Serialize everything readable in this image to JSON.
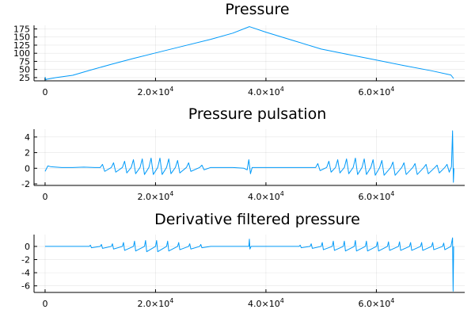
{
  "chart_data": [
    {
      "type": "line",
      "title": "Pressure",
      "xlabel": "",
      "ylabel": "",
      "xlim": [
        -2000,
        76000
      ],
      "ylim": [
        15,
        186
      ],
      "x_ticks": [
        {
          "value": 0,
          "mantissa": "0",
          "exp": ""
        },
        {
          "value": 20000,
          "mantissa": "2.0×10",
          "exp": "4"
        },
        {
          "value": 40000,
          "mantissa": "4.0×10",
          "exp": "4"
        },
        {
          "value": 60000,
          "mantissa": "6.0×10",
          "exp": "4"
        }
      ],
      "y_ticks": [
        25,
        50,
        75,
        100,
        125,
        150,
        175
      ],
      "grid": true,
      "legend": "none",
      "series": [
        {
          "x": [
            0,
            150,
            300,
            2000,
            5000,
            8000,
            12000,
            16000,
            20000,
            25000,
            30000,
            34000,
            37000,
            37200,
            40000,
            45000,
            50000,
            55000,
            60000,
            65000,
            70000,
            73500,
            74000
          ],
          "y": [
            27,
            18,
            20,
            25,
            32,
            47,
            66,
            84,
            101,
            122,
            143,
            162,
            182,
            181,
            165,
            139,
            113,
            96,
            79,
            62,
            46,
            33,
            22
          ]
        }
      ]
    },
    {
      "type": "line",
      "title": "Pressure pulsation",
      "xlabel": "",
      "ylabel": "",
      "xlim": [
        -2000,
        76000
      ],
      "ylim": [
        -2.2,
        5.0
      ],
      "x_ticks": [
        {
          "value": 0,
          "mantissa": "0",
          "exp": ""
        },
        {
          "value": 20000,
          "mantissa": "2.0×10",
          "exp": "4"
        },
        {
          "value": 40000,
          "mantissa": "4.0×10",
          "exp": "4"
        },
        {
          "value": 60000,
          "mantissa": "6.0×10",
          "exp": "4"
        }
      ],
      "y_ticks": [
        -2,
        0,
        2,
        4
      ],
      "grid": true,
      "legend": "none",
      "series": [
        {
          "x": [
            0,
            500,
            1000,
            3000,
            5000,
            7000,
            9000,
            10000,
            10400,
            10800,
            12000,
            12400,
            12800,
            14000,
            14400,
            14800,
            15600,
            16000,
            16400,
            17200,
            17600,
            18000,
            18800,
            19200,
            19600,
            20400,
            20800,
            21200,
            22000,
            22400,
            22800,
            23600,
            24000,
            24400,
            25600,
            26000,
            26400,
            28000,
            28400,
            28800,
            30000,
            32000,
            34000,
            36000,
            36600,
            36900,
            37200,
            37500,
            38000,
            40000,
            42000,
            44000,
            46000,
            48000,
            49000,
            49400,
            49800,
            51000,
            51400,
            51800,
            52600,
            53000,
            53400,
            54200,
            54600,
            55000,
            55800,
            56200,
            56600,
            57400,
            57800,
            58200,
            59000,
            59400,
            59800,
            60600,
            61000,
            61400,
            62600,
            63000,
            63400,
            64600,
            65000,
            65400,
            66600,
            67000,
            67400,
            68600,
            69000,
            69400,
            70600,
            71000,
            71400,
            72400,
            72800,
            73200,
            73600,
            73800,
            73950,
            74050
          ],
          "y": [
            -0.4,
            0.3,
            0.2,
            0.1,
            0.1,
            0.15,
            0.1,
            0.1,
            0.5,
            -0.4,
            0.1,
            0.7,
            -0.5,
            0.1,
            0.9,
            -0.6,
            0.1,
            1.1,
            -0.7,
            0.1,
            1.2,
            -0.8,
            0.1,
            1.3,
            -0.8,
            0.1,
            1.3,
            -0.8,
            0.1,
            1.2,
            -0.7,
            0.1,
            1.0,
            -0.6,
            0.1,
            0.7,
            -0.4,
            0.1,
            0.4,
            -0.2,
            0.1,
            0.1,
            0.1,
            0.0,
            -0.2,
            1.1,
            -0.7,
            0.1,
            0.1,
            0.1,
            0.1,
            0.1,
            0.1,
            0.1,
            0.1,
            0.6,
            -0.3,
            0.1,
            0.9,
            -0.5,
            0.1,
            1.1,
            -0.6,
            0.1,
            1.2,
            -0.7,
            0.1,
            1.3,
            -0.8,
            0.1,
            1.2,
            -0.8,
            0.1,
            1.1,
            -0.9,
            0.1,
            1.0,
            -0.9,
            0.1,
            0.8,
            -0.9,
            0.1,
            0.7,
            -0.8,
            0.1,
            0.6,
            -0.8,
            0.1,
            0.5,
            -0.7,
            0.1,
            0.4,
            -0.6,
            0.1,
            0.5,
            -0.5,
            0.2,
            4.8,
            -1.8,
            0.0
          ]
        }
      ]
    },
    {
      "type": "line",
      "title": "Derivative filtered pressure",
      "xlabel": "",
      "ylabel": "",
      "xlim": [
        -2000,
        76000
      ],
      "ylim": [
        -7.0,
        1.8
      ],
      "x_ticks": [
        {
          "value": 0,
          "mantissa": "0",
          "exp": ""
        },
        {
          "value": 20000,
          "mantissa": "2.0×10",
          "exp": "4"
        },
        {
          "value": 40000,
          "mantissa": "4.0×10",
          "exp": "4"
        },
        {
          "value": 60000,
          "mantissa": "6.0×10",
          "exp": "4"
        }
      ],
      "y_ticks": [
        -6,
        -4,
        -2,
        0
      ],
      "grid": true,
      "legend": "none",
      "series": [
        {
          "x": [
            0,
            3000,
            6000,
            8000,
            8200,
            8400,
            10000,
            10200,
            10400,
            12000,
            12200,
            12400,
            14000,
            14200,
            14400,
            16000,
            16200,
            16400,
            18000,
            18200,
            18400,
            20000,
            20200,
            20400,
            22000,
            22200,
            22400,
            24000,
            24200,
            24400,
            26000,
            26200,
            26400,
            28000,
            28200,
            28400,
            30000,
            33000,
            36000,
            36900,
            37000,
            37100,
            37300,
            40000,
            44000,
            46000,
            46200,
            46400,
            48000,
            48200,
            48400,
            50000,
            50200,
            50400,
            52000,
            52200,
            52400,
            54000,
            54200,
            54400,
            56000,
            56200,
            56400,
            58000,
            58200,
            58400,
            60000,
            60200,
            60400,
            62000,
            62200,
            62400,
            64000,
            64200,
            64400,
            66000,
            66200,
            66400,
            68000,
            68200,
            68400,
            70000,
            70200,
            70400,
            72000,
            72200,
            72400,
            73500,
            73800,
            73900,
            74000
          ],
          "y": [
            0.0,
            0.0,
            0.0,
            0.0,
            0.2,
            -0.2,
            0.0,
            0.3,
            -0.3,
            0.0,
            0.4,
            -0.4,
            0.0,
            0.6,
            -0.6,
            0.0,
            0.8,
            -0.7,
            0.0,
            0.9,
            -0.8,
            0.0,
            0.9,
            -0.8,
            0.0,
            0.8,
            -0.7,
            0.0,
            0.6,
            -0.5,
            0.0,
            0.4,
            -0.4,
            0.0,
            0.3,
            -0.2,
            0.0,
            0.0,
            0.0,
            0.0,
            1.1,
            -0.4,
            0.0,
            0.0,
            0.0,
            0.0,
            0.2,
            -0.2,
            0.0,
            0.4,
            -0.3,
            0.0,
            0.6,
            -0.5,
            0.0,
            0.8,
            -0.6,
            0.0,
            0.8,
            -0.7,
            0.0,
            0.9,
            -0.7,
            0.0,
            0.8,
            -0.7,
            0.0,
            0.7,
            -0.7,
            0.0,
            0.7,
            -0.6,
            0.0,
            0.7,
            -0.6,
            0.0,
            0.6,
            -0.6,
            0.0,
            0.6,
            -0.6,
            0.0,
            0.6,
            -0.5,
            0.0,
            0.5,
            -0.5,
            0.0,
            1.3,
            -6.8,
            0.0
          ]
        }
      ]
    }
  ],
  "colors": {
    "series": "#009af9",
    "axis": "#000000",
    "background": "#ffffff"
  }
}
